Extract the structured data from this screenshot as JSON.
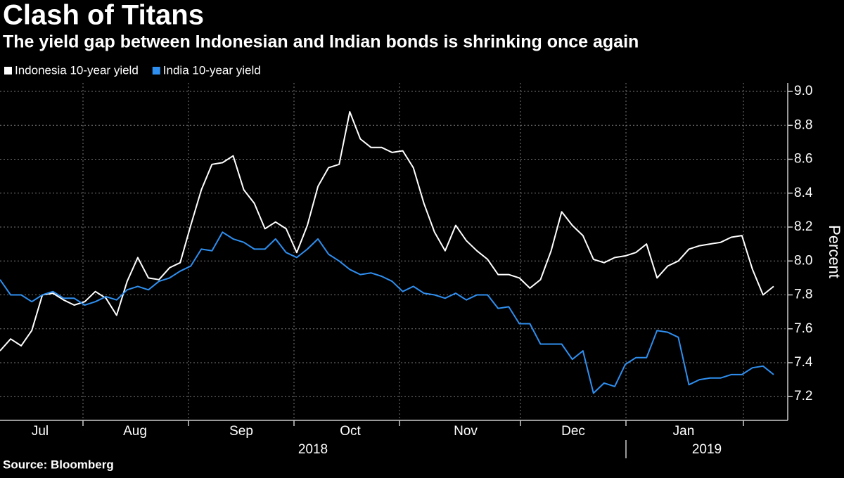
{
  "chart_data": {
    "type": "line",
    "title": "Clash of Titans",
    "subtitle": "The yield gap between Indonesian and Indian bonds is shrinking once again",
    "source": "Source: Bloomberg",
    "y_label": "Percent",
    "months": [
      "Jul",
      "Aug",
      "Sep",
      "Oct",
      "Nov",
      "Dec",
      "Jan"
    ],
    "years": [
      "2018",
      "2019"
    ],
    "ylim": [
      7.06,
      9.05
    ],
    "yticks": [
      {
        "value": 7.2,
        "label": "7.2"
      },
      7.4,
      7.6,
      7.8,
      {
        "value": 8,
        "label": "8.0"
      },
      8.2,
      8.4,
      8.6,
      8.8,
      {
        "value": 9,
        "label": "9.0"
      }
    ],
    "grid": true,
    "legend": "top-left",
    "series": [
      {
        "name": "Indonesia 10-year yield",
        "color": "#ffffff",
        "values": [
          7.47,
          7.54,
          7.5,
          7.59,
          7.8,
          7.81,
          7.77,
          7.74,
          7.76,
          7.82,
          7.78,
          7.68,
          7.88,
          8.02,
          7.9,
          7.89,
          7.96,
          7.99,
          8.21,
          8.42,
          8.57,
          8.58,
          8.62,
          8.42,
          8.34,
          8.19,
          8.23,
          8.19,
          8.05,
          8.21,
          8.44,
          8.55,
          8.57,
          8.88,
          8.72,
          8.67,
          8.67,
          8.64,
          8.65,
          8.55,
          8.34,
          8.17,
          8.06,
          8.21,
          8.12,
          8.06,
          8.01,
          7.92,
          7.92,
          7.9,
          7.84,
          7.89,
          8.06,
          8.29,
          8.21,
          8.15,
          8.01,
          7.99,
          8.02,
          8.03,
          8.05,
          8.1,
          7.9,
          7.97,
          8.0,
          8.07,
          8.09,
          8.1,
          8.11,
          8.14,
          8.15,
          7.95,
          7.8,
          7.85
        ]
      },
      {
        "name": "India 10-year yield",
        "color": "#2f8ff0",
        "values": [
          7.89,
          7.8,
          7.8,
          7.76,
          7.8,
          7.82,
          7.78,
          7.78,
          7.74,
          7.76,
          7.79,
          7.77,
          7.83,
          7.85,
          7.83,
          7.88,
          7.9,
          7.94,
          7.97,
          8.07,
          8.06,
          8.17,
          8.13,
          8.11,
          8.07,
          8.07,
          8.13,
          8.05,
          8.02,
          8.07,
          8.13,
          8.04,
          8.0,
          7.95,
          7.92,
          7.93,
          7.91,
          7.88,
          7.82,
          7.85,
          7.81,
          7.8,
          7.78,
          7.81,
          7.77,
          7.8,
          7.8,
          7.72,
          7.73,
          7.63,
          7.63,
          7.51,
          7.51,
          7.51,
          7.42,
          7.47,
          7.22,
          7.28,
          7.26,
          7.39,
          7.43,
          7.43,
          7.59,
          7.58,
          7.55,
          7.27,
          7.3,
          7.31,
          7.31,
          7.33,
          7.33,
          7.37,
          7.38,
          7.33
        ]
      }
    ]
  }
}
